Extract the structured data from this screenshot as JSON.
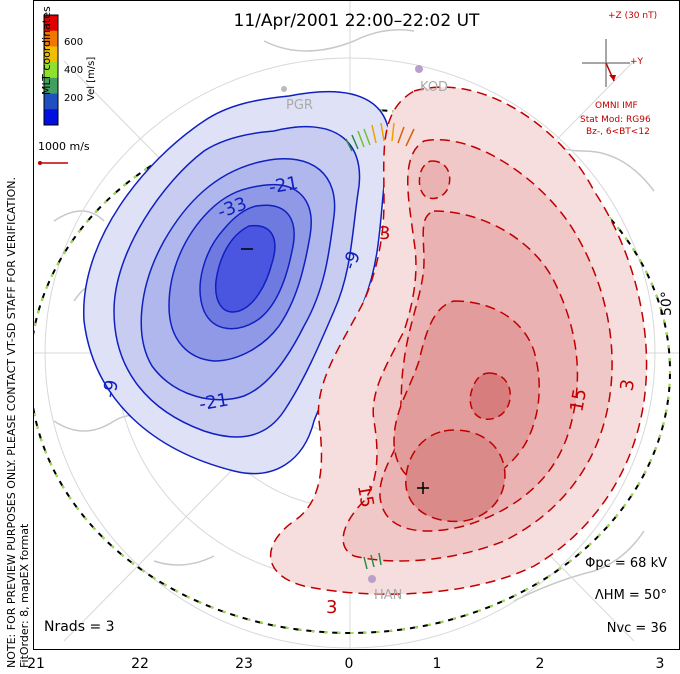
{
  "title": "11/Apr/2001 22:00–22:02 UT",
  "side_note": "NOTE: FOR PREVIEW PURPOSES ONLY. PLEASE CONTACT VT-SD STAFF FOR VERIFICATION.",
  "fit_note": "FitOrder: 8, mapEX format",
  "mlt_label": "MLT coordinates",
  "colorbar": {
    "title": "Vel [m/s]",
    "ticks": [
      "600",
      "400",
      "200"
    ],
    "colors": [
      "#e00000",
      "#f07800",
      "#f0c000",
      "#90e030",
      "#40a060",
      "#2050c0",
      "#0010e0"
    ]
  },
  "velocity_scale_label": "1000 m/s",
  "imf": {
    "top": "+Z (30 nT)",
    "right": "+Y",
    "model1": "OMNI IMF",
    "model2": "Stat Mod: RG96",
    "model3": "Bz-, 6<BT<12"
  },
  "stations": [
    "PGR",
    "KOD",
    "HAN"
  ],
  "latitude_label": "50°",
  "contour_labels": {
    "neg": [
      "-33",
      "-21",
      "-9",
      "-21",
      "-9"
    ],
    "pos": [
      "3",
      "15",
      "3",
      "15",
      "3"
    ]
  },
  "stats": {
    "phi_pc": "Φpc = 68 kV",
    "lambda_hm": "ΛHM = 50°",
    "n_vc": "Nvc = 36",
    "n_rads": "Nrads = 3"
  },
  "x_ticks": [
    "21",
    "22",
    "23",
    "0",
    "1",
    "2",
    "3"
  ],
  "colors": {
    "negative": "#1020c0",
    "positive": "#c00000",
    "boundary": "#9de04a"
  }
}
